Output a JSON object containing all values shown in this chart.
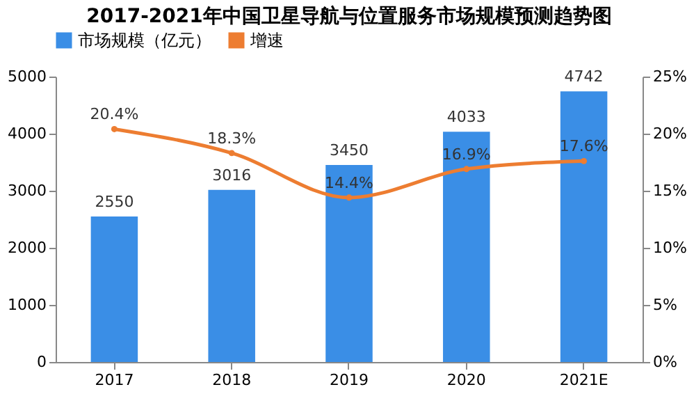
{
  "chart_data": {
    "type": "bar",
    "title": "2017-2021年中国卫星导航与位置服务市场规模预测趋势图",
    "categories": [
      "2017",
      "2018",
      "2019",
      "2020",
      "2021E"
    ],
    "series": [
      {
        "name": "市场规模（亿元）",
        "color": "#3a8ee6",
        "values": [
          2550,
          3016,
          3450,
          4033,
          4742
        ],
        "value_labels": [
          "2550",
          "3016",
          "3450",
          "4033",
          "4742"
        ]
      },
      {
        "name": "增速",
        "type": "line",
        "axis": "y2",
        "color": "#ed7d31",
        "values": [
          20.4,
          18.3,
          14.4,
          16.9,
          17.6
        ],
        "value_labels": [
          "20.4%",
          "18.3%",
          "14.4%",
          "16.9%",
          "17.6%"
        ],
        "marker": "circle"
      }
    ],
    "ylim": [
      0,
      5000
    ],
    "yticks": [
      0,
      1000,
      2000,
      3000,
      4000,
      5000
    ],
    "y2lim": [
      0,
      25
    ],
    "y2ticks": [
      {
        "value": 0,
        "label": "0%"
      },
      {
        "value": 5,
        "label": "5%"
      },
      {
        "value": 10,
        "label": "10%"
      },
      {
        "value": 15,
        "label": "15%"
      },
      {
        "value": 20,
        "label": "20%"
      },
      {
        "value": 25,
        "label": "25%"
      }
    ],
    "grid": false,
    "legend": "top"
  }
}
